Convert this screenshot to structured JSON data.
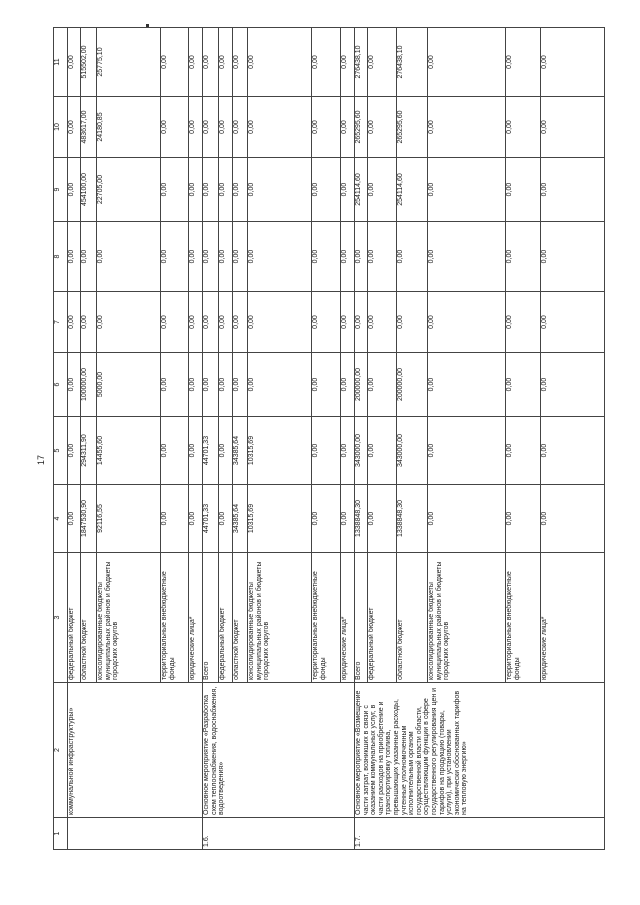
{
  "page_number": "17",
  "header": [
    "1",
    "2",
    "3",
    "4",
    "5",
    "6",
    "7",
    "8",
    "9",
    "10",
    "11"
  ],
  "groups": [
    {
      "num": "",
      "title": "коммунальной инфраструктуры»",
      "rows": [
        {
          "source": "федеральный бюджет",
          "values": [
            "0,00",
            "0,00",
            "0,00",
            "0,00",
            "0,00",
            "0,00",
            "0,00",
            "0,00"
          ]
        },
        {
          "source": "областной бюджет",
          "values": [
            "1847530,90",
            "294311,90",
            "100000,00",
            "0,00",
            "0,00",
            "454100,00",
            "483617,00",
            "515502,00"
          ]
        },
        {
          "source": "консолидированные бюджеты муниципальных районов и бюджеты городских округов",
          "values": [
            "92116,55",
            "14455,60",
            "5000,00",
            "0,00",
            "0,00",
            "22705,00",
            "24180,85",
            "25775,10"
          ]
        },
        {
          "source": "территориальные внебюджетные фонды",
          "values": [
            "0,00",
            "0,00",
            "0,00",
            "0,00",
            "0,00",
            "0,00",
            "0,00",
            "0,00"
          ]
        },
        {
          "source": "юридические лица*",
          "values": [
            "0,00",
            "0,00",
            "0,00",
            "0,00",
            "0,00",
            "0,00",
            "0,00",
            "0,00"
          ]
        }
      ]
    },
    {
      "num": "1.6.",
      "title": "Основное мероприятие «Разработка схем теплоснабжения, водоснабжения, водоотведения»",
      "rows": [
        {
          "source": "Всего",
          "values": [
            "44701,33",
            "44701,33",
            "0,00",
            "0,00",
            "0,00",
            "0,00",
            "0,00",
            "0,00"
          ]
        },
        {
          "source": "федеральный бюджет",
          "values": [
            "0,00",
            "0,00",
            "0,00",
            "0,00",
            "0,00",
            "0,00",
            "0,00",
            "0,00"
          ]
        },
        {
          "source": "областной бюджет",
          "values": [
            "34385,64",
            "34385,64",
            "0,00",
            "0,00",
            "0,00",
            "0,00",
            "0,00",
            "0,00"
          ]
        },
        {
          "source": "консолидированные бюджеты муниципальных районов и бюджеты городских округов",
          "values": [
            "10315,69",
            "10315,69",
            "0,00",
            "0,00",
            "0,00",
            "0,00",
            "0,00",
            "0,00"
          ]
        },
        {
          "source": "территориальные внебюджетные фонды",
          "values": [
            "0,00",
            "0,00",
            "0,00",
            "0,00",
            "0,00",
            "0,00",
            "0,00",
            "0,00"
          ]
        },
        {
          "source": "юридические лица*",
          "values": [
            "0,00",
            "0,00",
            "0,00",
            "0,00",
            "0,00",
            "0,00",
            "0,00",
            "0,00"
          ]
        }
      ]
    },
    {
      "num": "1.7.",
      "title": "Основное мероприятие «Возмещение части затрат, возникших в связи с оказанием коммунальных услуг, в части расходов на приобретение и транспортировку топлива, превышающих указанные расходы, учтенные уполномоченным исполнительным органом государственной власти области, осуществляющим функции в сфере государственного регулирования цен и тарифов на продукцию (товары, услуги), при установлении экономически обоснованных тарифов на тепловую энергию»",
      "rows": [
        {
          "source": "Всего",
          "values": [
            "1338848,30",
            "343000,00",
            "200000,00",
            "0,00",
            "0,00",
            "254114,60",
            "265295,60",
            "276438,10"
          ]
        },
        {
          "source": "федеральный бюджет",
          "values": [
            "0,00",
            "0,00",
            "0,00",
            "0,00",
            "0,00",
            "0,00",
            "0,00",
            "0,00"
          ]
        },
        {
          "source": "областной бюджет",
          "values": [
            "1338848,30",
            "343000,00",
            "200000,00",
            "0,00",
            "0,00",
            "254114,60",
            "265295,60",
            "276438,10"
          ]
        },
        {
          "source": "консолидированные бюджеты муниципальных районов и бюджеты городских округов",
          "values": [
            "0,00",
            "0,00",
            "0,00",
            "0,00",
            "0,00",
            "0,00",
            "0,00",
            "0,00"
          ]
        },
        {
          "source": "территориальные внебюджетные фонды",
          "values": [
            "0,00",
            "0,00",
            "0,00",
            "0,00",
            "0,00",
            "0,00",
            "0,00",
            "0,00"
          ]
        },
        {
          "source": "юридические лица*",
          "values": [
            "0,00",
            "0,00",
            "0,00",
            "0,00",
            "0,00",
            "0,00",
            "0,00",
            "0,00"
          ]
        }
      ]
    }
  ]
}
